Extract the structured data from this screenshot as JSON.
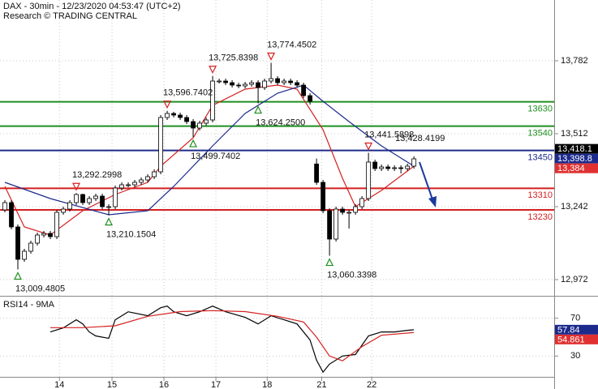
{
  "chart_data": {
    "type": "candlestick",
    "title": "DAX - 30min - 12/23/2020 04:53:47 (UTC+2)",
    "subtitle": "Research © TRADING CENTRAL",
    "xlim": [
      -0.75,
      84.6
    ],
    "xticks": [
      {
        "value": 8.4,
        "label": "14"
      },
      {
        "value": 16.5,
        "label": "15"
      },
      {
        "value": 24.5,
        "label": "16"
      },
      {
        "value": 32.5,
        "label": "17"
      },
      {
        "value": 40.4,
        "label": "18"
      },
      {
        "value": 48.8,
        "label": "21"
      },
      {
        "value": 56.5,
        "label": "22"
      }
    ],
    "ylim": [
      12912,
      14007
    ],
    "yticks": [
      {
        "value": 13782,
        "label": "13,782"
      },
      {
        "value": 13512,
        "label": "13,512"
      },
      {
        "value": 13242,
        "label": "13,242"
      },
      {
        "value": 12972,
        "label": "12,972"
      }
    ],
    "grid": true,
    "up_color": "#ffffff",
    "down_color": "#000000",
    "open": [
      13230,
      13257,
      13167,
      13047,
      13077,
      13107,
      13137,
      13143,
      13131,
      13221,
      13233,
      13257,
      13287,
      13257,
      13272,
      13281,
      13242,
      13242,
      13311,
      13323,
      13323,
      13332,
      13341,
      13353,
      13371,
      13572,
      13587,
      13581,
      13572,
      13557,
      13533,
      13551,
      13563,
      13707,
      13707,
      13701,
      13692,
      13689,
      13695,
      13701,
      13683,
      13707,
      13716,
      13701,
      13707,
      13701,
      13692,
      13653,
      13400,
      13332,
      13227,
      13122,
      13233,
      13221,
      13221,
      13242,
      13272,
      13407,
      13383,
      13389,
      13383,
      13386,
      13383,
      13392
    ],
    "high": [
      13266,
      13266,
      13176,
      13086,
      13116,
      13146,
      13152,
      13152,
      13230,
      13242,
      13266,
      13292.2998,
      13290,
      13281,
      13290,
      13290,
      13251,
      13320,
      13332,
      13332,
      13341,
      13350,
      13362,
      13380,
      13581,
      13596.7402,
      13593,
      13590,
      13581,
      13566,
      13560,
      13572,
      13725.8398,
      13716,
      13716,
      13710,
      13701,
      13704,
      13710,
      13710,
      13716,
      13774.4502,
      13725,
      13716,
      13716,
      13710,
      13701,
      13662,
      13420,
      13341,
      13236,
      13242,
      13242,
      13230,
      13251,
      13281,
      13441.5898,
      13416,
      13398,
      13398,
      13395,
      13395,
      13401,
      13428.4199
    ],
    "low": [
      13221,
      13158,
      13009.4805,
      13038,
      13068,
      13098,
      13128,
      13122,
      13122,
      13212,
      13224,
      13248,
      13248,
      13248,
      13263,
      13233,
      13210.1504,
      13233,
      13302,
      13314,
      13314,
      13323,
      13332,
      13344,
      13362,
      13563,
      13572,
      13563,
      13548,
      13499.7402,
      13524,
      13542,
      13554,
      13698,
      13692,
      13683,
      13680,
      13680,
      13686,
      13624.25,
      13674,
      13698,
      13692,
      13692,
      13692,
      13683,
      13644,
      13620,
      13323,
      13218,
      13060.3398,
      13113,
      13212,
      13161,
      13212,
      13233,
      13263,
      13374,
      13374,
      13374,
      13374,
      13365,
      13374,
      13383
    ],
    "close": [
      13257,
      13167,
      13047,
      13077,
      13107,
      13137,
      13143,
      13131,
      13221,
      13233,
      13257,
      13287,
      13257,
      13272,
      13281,
      13242,
      13242,
      13311,
      13323,
      13323,
      13332,
      13341,
      13353,
      13371,
      13572,
      13587,
      13581,
      13572,
      13557,
      13533,
      13551,
      13563,
      13707,
      13707,
      13701,
      13692,
      13689,
      13695,
      13701,
      13683,
      13707,
      13716,
      13701,
      13707,
      13701,
      13692,
      13653,
      13632,
      13332,
      13227,
      13122,
      13233,
      13221,
      13221,
      13242,
      13272,
      13407,
      13383,
      13389,
      13383,
      13386,
      13383,
      13392,
      13419
    ],
    "moving_averages": [
      {
        "color": "#d42020",
        "x": [
          0,
          3,
          7,
          12,
          17,
          22,
          24,
          29,
          32,
          37,
          42,
          45,
          49,
          52,
          54,
          58,
          63
        ],
        "values": [
          13317,
          13167,
          13137,
          13227,
          13287,
          13332,
          13392,
          13497,
          13617,
          13677,
          13692,
          13677,
          13527,
          13347,
          13242,
          13302,
          13392
        ]
      },
      {
        "color": "#1c2a8c",
        "x": [
          0,
          7,
          16,
          22,
          26,
          32,
          37,
          42,
          46,
          49,
          53,
          58,
          63
        ],
        "values": [
          13332,
          13272,
          13212,
          13227,
          13317,
          13467,
          13587,
          13662,
          13692,
          13632,
          13557,
          13467,
          13392
        ]
      }
    ],
    "levels": [
      {
        "value": 13630,
        "color": "#1f8f1f"
      },
      {
        "value": 13540,
        "color": "#1f8f1f"
      },
      {
        "value": 13450,
        "color": "#1c2a8c"
      },
      {
        "value": 13310,
        "color": "#d42020"
      },
      {
        "value": 13230,
        "color": "#d42020"
      }
    ],
    "annotations": [
      {
        "x": 2,
        "value": 13009.4805,
        "label": "13,009.4805",
        "side": "below",
        "marker": true
      },
      {
        "x": 11,
        "value": 13292.2998,
        "label": "13,292.2998",
        "side": "above",
        "marker": true
      },
      {
        "x": 16,
        "value": 13210.1504,
        "label": "13,210.1504",
        "side": "below",
        "marker": true
      },
      {
        "x": 25,
        "value": 13596.7402,
        "label": "13,596.7402",
        "side": "above",
        "marker": true
      },
      {
        "x": 29,
        "value": 13499.7402,
        "label": "13,499.7402",
        "side": "below",
        "marker": true
      },
      {
        "x": 32,
        "value": 13725.8398,
        "label": "13,725.8398",
        "side": "above",
        "marker": true
      },
      {
        "x": 39,
        "value": 13624.25,
        "label": "13,624.2500",
        "side": "below",
        "marker": true
      },
      {
        "x": 41,
        "value": 13774.4502,
        "label": "13,774.4502",
        "side": "above",
        "marker": true
      },
      {
        "x": 50,
        "value": 13060.3398,
        "label": "13,060.3398",
        "side": "below",
        "marker": true
      },
      {
        "x": 56,
        "value": 13441.5898,
        "label": "13,441.5898",
        "side": "above",
        "marker": true
      },
      {
        "x": 63,
        "value": 13428.4199,
        "label": "13,428.4199",
        "side": "above",
        "marker": false
      }
    ],
    "price_tags": [
      {
        "value": 13418.1,
        "label": "13,418.1",
        "color": "#000000"
      },
      {
        "value": 13398.8,
        "label": "13,398.8",
        "color": "#1c2a8c"
      },
      {
        "value": 13384,
        "label": "13,384",
        "color": "#e03030"
      }
    ],
    "indicator": {
      "title": "RSI14 - 9MA",
      "ylim": [
        8,
        92
      ],
      "yticks": [
        30,
        70
      ],
      "series": [
        {
          "color": "#000000",
          "x": [
            7,
            9,
            11,
            12,
            13,
            14,
            16,
            17,
            19,
            22,
            24,
            25,
            26,
            28,
            30,
            32,
            34,
            37,
            39,
            41,
            43,
            45,
            47,
            48,
            49,
            50,
            52,
            54,
            56,
            58,
            60,
            62,
            63
          ],
          "values": [
            55.5,
            59.8,
            68.3,
            64.0,
            55.5,
            51.3,
            48.7,
            68.3,
            76.8,
            72.6,
            81.1,
            82.8,
            76.8,
            72.6,
            76.8,
            82.8,
            76.8,
            70.9,
            64.0,
            72.6,
            68.3,
            64.0,
            47.0,
            25.7,
            13.0,
            21.5,
            30.0,
            31.7,
            51.3,
            55.5,
            55.5,
            57.2,
            57.84
          ]
        },
        {
          "color": "#d42020",
          "x": [
            7,
            12,
            17,
            22,
            27,
            32,
            37,
            42,
            46,
            48,
            50,
            52,
            55,
            58,
            63
          ],
          "values": [
            60,
            60,
            62,
            72,
            77,
            78,
            77,
            72,
            66,
            50,
            30,
            25,
            40,
            52,
            54.861
          ]
        }
      ],
      "tags": [
        {
          "value": 57.84,
          "color": "#1c2a8c"
        },
        {
          "value": 54.861,
          "color": "#e03030"
        }
      ]
    }
  }
}
